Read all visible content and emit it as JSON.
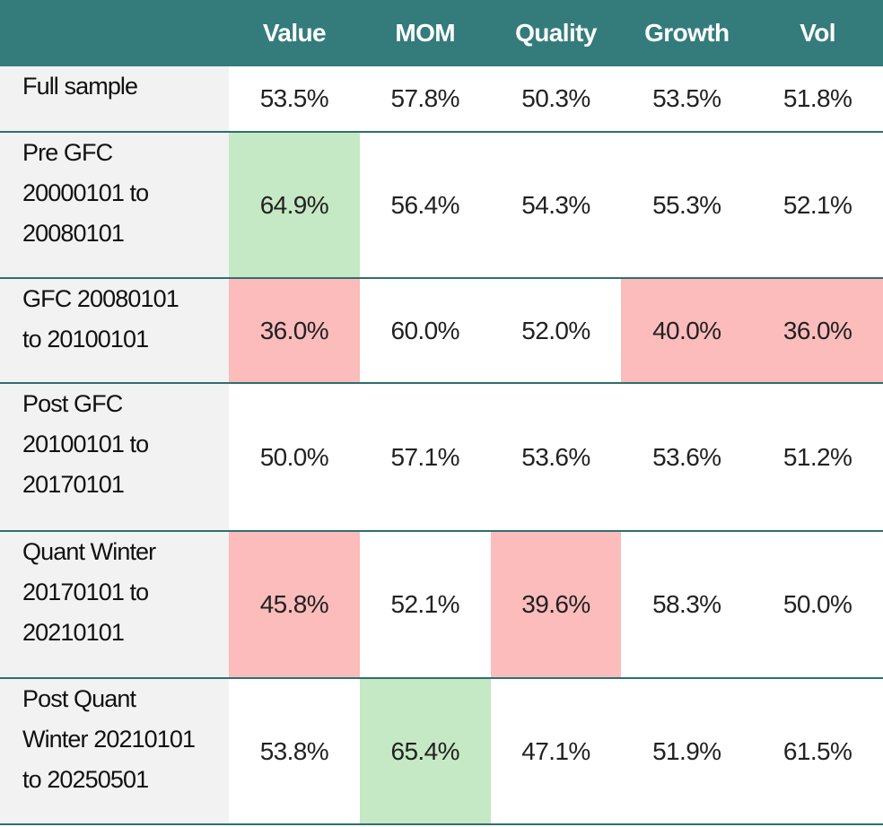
{
  "table": {
    "header": [
      "",
      "Value",
      "MOM",
      "Quality",
      "Growth",
      "Vol"
    ],
    "header_color": "#347b7c",
    "label_background": "#f2f2f2",
    "rows": [
      {
        "label": [
          "Full sample"
        ],
        "cells": [
          "53.5%",
          "57.8%",
          "50.3%",
          "53.5%",
          "51.8%"
        ],
        "colors": [
          "#ffffff",
          "#ffffff",
          "#ffffff",
          "#ffffff",
          "#ffffff"
        ]
      },
      {
        "label": [
          "Pre GFC",
          "20000101 to",
          "20080101"
        ],
        "cells": [
          "64.9%",
          "56.4%",
          "54.3%",
          "55.3%",
          "52.1%"
        ],
        "colors": [
          "#c5e8c5",
          "#ffffff",
          "#ffffff",
          "#ffffff",
          "#ffffff"
        ]
      },
      {
        "label": [
          "GFC 20080101",
          "to 20100101"
        ],
        "cells": [
          "36.0%",
          "60.0%",
          "52.0%",
          "40.0%",
          "36.0%"
        ],
        "colors": [
          "#fcbcbc",
          "#ffffff",
          "#ffffff",
          "#fcbcbc",
          "#fcbcbc"
        ]
      },
      {
        "label": [
          "Post GFC",
          "20100101 to",
          "20170101"
        ],
        "cells": [
          "50.0%",
          "57.1%",
          "53.6%",
          "53.6%",
          "51.2%"
        ],
        "colors": [
          "#ffffff",
          "#ffffff",
          "#ffffff",
          "#ffffff",
          "#ffffff"
        ]
      },
      {
        "label": [
          "Quant Winter",
          "20170101 to",
          "20210101"
        ],
        "cells": [
          "45.8%",
          "52.1%",
          "39.6%",
          "58.3%",
          "50.0%"
        ],
        "colors": [
          "#fcbcbc",
          "#ffffff",
          "#fcbcbc",
          "#ffffff",
          "#ffffff"
        ]
      },
      {
        "label": [
          "Post Quant",
          "Winter 20210101",
          "to 20250501"
        ],
        "cells": [
          "53.8%",
          "65.4%",
          "47.1%",
          "51.9%",
          "61.5%"
        ],
        "colors": [
          "#ffffff",
          "#c5e8c5",
          "#ffffff",
          "#ffffff",
          "#ffffff"
        ]
      }
    ]
  }
}
